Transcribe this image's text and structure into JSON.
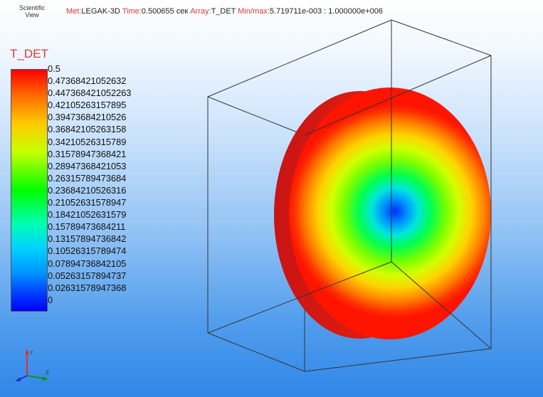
{
  "logo": {
    "line1": "Scientific",
    "line2": "View"
  },
  "infobar": {
    "met_label": "Met:",
    "met_value": "LEGAK-3D",
    "time_label": "Time:",
    "time_value": "0.500655 сек",
    "array_label": "Array:",
    "array_value": "T_DET",
    "minmax_label": "Min/max:",
    "minmax_value": "5.719711e-003 : 1.000000e+006"
  },
  "legend": {
    "title": "T_DET",
    "ticks": [
      "0.5",
      "0.47368421052632",
      "0.447368421052263",
      "0.42105263157895",
      "0.39473684210526",
      "0.36842105263158",
      "0.34210526315789",
      "0.31578947368421",
      "0.28947368421053",
      "0.26315789473684",
      "0.23684210526316",
      "0.21052631578947",
      "0.18421052631579",
      "0.15789473684211",
      "0.13157894736842",
      "0.10526315789474",
      "0.07894736842105",
      "0.05263157894737",
      "0.02631578947368",
      "0"
    ]
  },
  "colors": {
    "label_red": "#d63a3a",
    "max": "#ff0000",
    "min": "#0000ff"
  },
  "icons": {
    "axes": "xyz-axes-icon"
  }
}
